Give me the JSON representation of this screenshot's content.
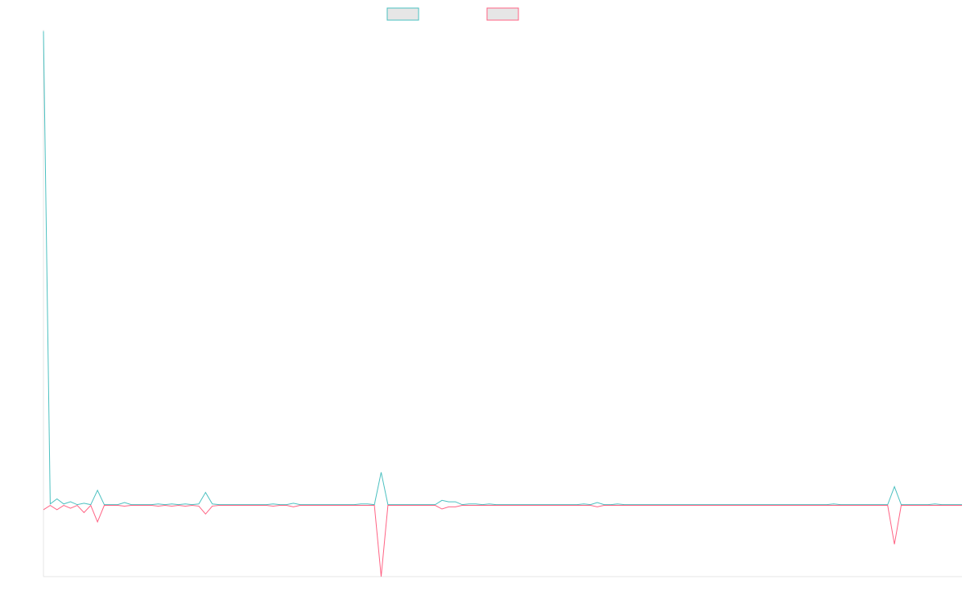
{
  "chart_data": {
    "type": "line",
    "title": "",
    "xlabel": "",
    "ylabel": "",
    "legend": "top-center",
    "grid": false,
    "ylim": [
      -100,
      660
    ],
    "x": [
      0,
      1,
      2,
      3,
      4,
      5,
      6,
      7,
      8,
      9,
      10,
      11,
      12,
      13,
      14,
      15,
      16,
      17,
      18,
      19,
      20,
      21,
      22,
      23,
      24,
      25,
      26,
      27,
      28,
      29,
      30,
      31,
      32,
      33,
      34,
      35,
      36,
      37,
      38,
      39,
      40,
      41,
      42,
      43,
      44,
      45,
      46,
      47,
      48,
      49,
      50,
      51,
      52,
      53,
      54,
      55,
      56,
      57,
      58,
      59,
      60,
      61,
      62,
      63,
      64,
      65,
      66,
      67,
      68,
      69,
      70,
      71,
      72,
      73,
      74,
      75,
      76,
      77,
      78,
      79,
      80,
      81,
      82,
      83,
      84,
      85,
      86,
      87,
      88,
      89,
      90,
      91,
      92,
      93,
      94,
      95,
      96,
      97,
      98,
      99,
      100,
      101,
      102,
      103,
      104,
      105,
      106,
      107,
      108,
      109,
      110,
      111,
      112,
      113,
      114,
      115,
      116,
      117,
      118,
      119,
      120,
      121,
      122,
      123,
      124,
      125,
      126,
      127,
      128,
      129,
      130,
      131,
      132,
      133,
      134,
      135,
      136
    ],
    "series": [
      {
        "color": "#4BC0C0",
        "values": [
          658,
          1,
          8,
          1,
          4,
          0,
          2,
          0,
          20,
          0,
          0,
          0,
          3,
          0,
          0,
          0,
          0,
          1,
          0,
          1,
          0,
          1,
          0,
          1,
          17,
          1,
          0,
          0,
          0,
          0,
          0,
          0,
          0,
          0,
          1,
          0,
          0,
          2,
          0,
          0,
          0,
          0,
          0,
          0,
          0,
          0,
          0,
          1,
          1,
          0,
          45,
          0,
          0,
          0,
          0,
          0,
          0,
          0,
          0,
          6,
          4,
          4,
          0,
          1,
          1,
          0,
          1,
          0,
          0,
          0,
          0,
          0,
          0,
          0,
          0,
          0,
          0,
          0,
          0,
          0,
          1,
          0,
          3,
          0,
          0,
          1,
          0,
          0,
          0,
          0,
          0,
          0,
          0,
          0,
          0,
          0,
          0,
          0,
          0,
          0,
          0,
          0,
          0,
          0,
          0,
          0,
          0,
          0,
          0,
          0,
          0,
          0,
          0,
          0,
          0,
          0,
          0,
          1,
          0,
          0,
          0,
          0,
          0,
          0,
          0,
          0,
          25,
          0,
          0,
          0,
          0,
          0,
          1,
          0,
          0,
          0,
          0
        ]
      },
      {
        "color": "#FF6384",
        "values": [
          -7,
          -1,
          -7,
          -1,
          -5,
          -1,
          -11,
          -1,
          -24,
          -1,
          -1,
          -1,
          -2,
          -1,
          -1,
          -1,
          -1,
          -2,
          -1,
          -2,
          -1,
          -2,
          -1,
          -2,
          -13,
          -2,
          -1,
          -1,
          -1,
          -1,
          -1,
          -1,
          -1,
          -1,
          -2,
          -1,
          -1,
          -3,
          -1,
          -1,
          -1,
          -1,
          -1,
          -1,
          -1,
          -1,
          -1,
          -1,
          -1,
          -1,
          -100,
          -1,
          -1,
          -1,
          -1,
          -1,
          -1,
          -1,
          -1,
          -6,
          -3,
          -3,
          -1,
          -1,
          -1,
          -1,
          -1,
          -1,
          -1,
          -1,
          -1,
          -1,
          -1,
          -1,
          -1,
          -1,
          -1,
          -1,
          -1,
          -1,
          -1,
          -1,
          -3,
          -1,
          -1,
          -1,
          -1,
          -1,
          -1,
          -1,
          -1,
          -1,
          -1,
          -1,
          -1,
          -1,
          -1,
          -1,
          -1,
          -1,
          -1,
          -1,
          -1,
          -1,
          -1,
          -1,
          -1,
          -1,
          -1,
          -1,
          -1,
          -1,
          -1,
          -1,
          -1,
          -1,
          -1,
          -1,
          -1,
          -1,
          -1,
          -1,
          -1,
          -1,
          -1,
          -1,
          -55,
          -1,
          -1,
          -1,
          -1,
          -1,
          -1,
          -1,
          -1,
          -1,
          -1
        ]
      }
    ]
  }
}
